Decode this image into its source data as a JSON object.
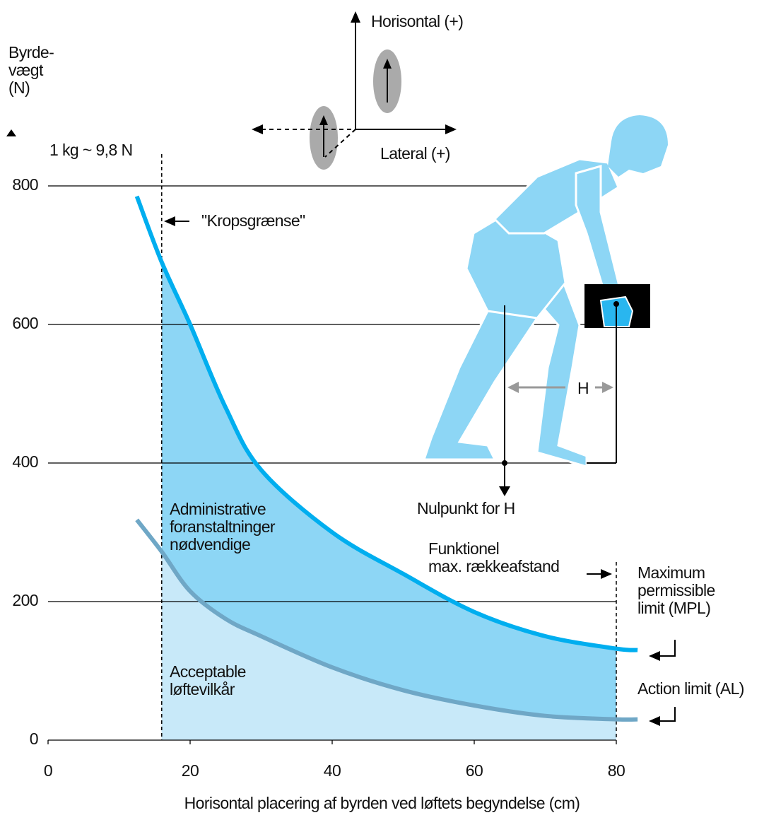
{
  "chart_data": {
    "type": "line",
    "y_label": "Byrde-\nvægt\n(N)",
    "x_label": "Horisontal placering af byrden ved løftets begyndelse (cm)",
    "conversion_note": "1 kg ~ 9,8 N",
    "x": [
      12.5,
      16,
      20,
      25,
      30,
      40,
      50,
      60,
      70,
      80,
      83
    ],
    "series": [
      {
        "name": "Maximum\npermissible\nlimit (MPL)",
        "color": "#00aeef",
        "values": [
          785,
          690,
          600,
          480,
          390,
          300,
          240,
          185,
          150,
          132,
          130
        ]
      },
      {
        "name": "Action limit (AL)",
        "color": "#6fa7c6",
        "values": [
          318,
          272,
          215,
          175,
          150,
          105,
          72,
          50,
          35,
          30,
          30
        ]
      }
    ],
    "xlim": [
      0,
      80
    ],
    "ylim": [
      0,
      800
    ],
    "xticks": [
      0,
      20,
      40,
      60,
      80
    ],
    "yticks": [
      0,
      200,
      400,
      600,
      800
    ],
    "grid": true,
    "regions": [
      {
        "label": "Administrative\nforanstaltninger\nnødvendige",
        "color": "#8dd6f5"
      },
      {
        "label": "Acceptable\nløftevilkår",
        "color": "#c8e9f9"
      }
    ],
    "markers": [
      {
        "x": 16,
        "label": "\"Kropsgrænse\""
      },
      {
        "x": 80,
        "label": "Funktionel\nmax. rækkeafstand"
      }
    ],
    "figure": {
      "axes": [
        "Horisontal (+)",
        "Lateral (+)"
      ],
      "distance_label": "H",
      "origin_label": "Nulpunkt for H"
    }
  }
}
